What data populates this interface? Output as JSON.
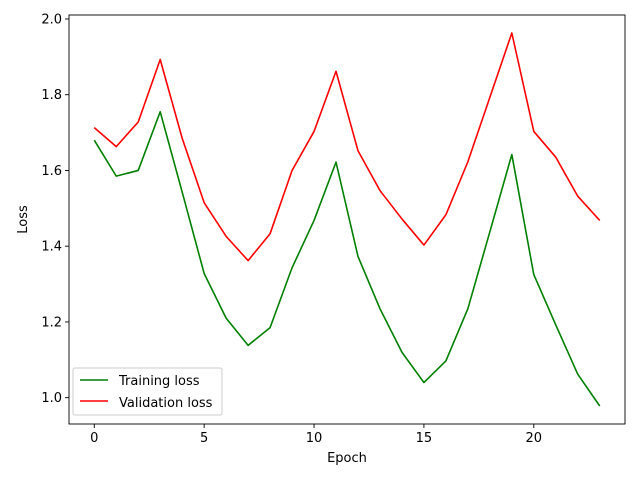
{
  "chart_data": {
    "type": "line",
    "title": "",
    "xlabel": "Epoch",
    "ylabel": "Loss",
    "xlim": [
      -1.15,
      24.15
    ],
    "ylim": [
      0.9305,
      2.0105
    ],
    "xticks": [
      0,
      5,
      10,
      15,
      20
    ],
    "yticks": [
      1.0,
      1.2,
      1.4,
      1.6,
      1.8,
      2.0
    ],
    "grid": false,
    "legend_position": "lower-left",
    "x": [
      0,
      1,
      2,
      3,
      4,
      5,
      6,
      7,
      8,
      9,
      10,
      11,
      12,
      13,
      14,
      15,
      16,
      17,
      18,
      19,
      20,
      21,
      22,
      23
    ],
    "series": [
      {
        "name": "Training loss",
        "color": "#008000",
        "values": [
          1.68,
          1.585,
          1.6,
          1.755,
          1.543,
          1.328,
          1.21,
          1.138,
          1.185,
          1.343,
          1.468,
          1.622,
          1.373,
          1.235,
          1.12,
          1.04,
          1.097,
          1.235,
          1.438,
          1.642,
          1.325,
          1.192,
          1.062,
          0.978
        ]
      },
      {
        "name": "Validation loss",
        "color": "#ff0000",
        "values": [
          1.713,
          1.663,
          1.728,
          1.893,
          1.685,
          1.515,
          1.426,
          1.362,
          1.433,
          1.6,
          1.703,
          1.862,
          1.652,
          1.547,
          1.472,
          1.403,
          1.483,
          1.623,
          1.793,
          1.963,
          1.703,
          1.635,
          1.532,
          1.468
        ]
      }
    ]
  }
}
